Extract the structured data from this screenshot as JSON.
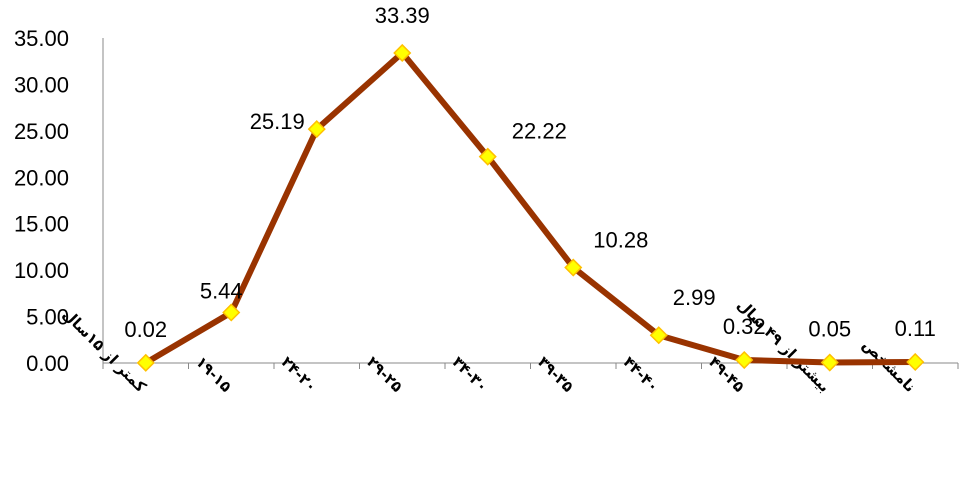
{
  "chart_data": {
    "type": "line",
    "categories": [
      "کمتر از ۱۵سال",
      "۱۹-۱۵",
      "۲۴-۲۰",
      "۲۹-۲۵",
      "۳۴-۳۰",
      "۳۹-۳۵",
      "۴۴-۴۰",
      "۴۹-۴۵",
      "بیشتر از ۴۹ سال",
      "نامشخص"
    ],
    "values": [
      0.02,
      5.44,
      25.19,
      33.39,
      22.22,
      10.28,
      2.99,
      0.32,
      0.05,
      0.11
    ],
    "data_labels": [
      "0.02",
      "5.44",
      "25.19",
      "33.39",
      "22.22",
      "10.28",
      "2.99",
      "0.32",
      "0.05",
      "0.11"
    ],
    "y_ticks": [
      "0.00",
      "5.00",
      "10.00",
      "15.00",
      "20.00",
      "25.00",
      "30.00",
      "35.00"
    ],
    "ylim": [
      0,
      35
    ],
    "grid": false,
    "legend": "none",
    "colors": {
      "line": "#993300",
      "marker_fill": "#ffff00",
      "marker_stroke": "#ffc000"
    }
  }
}
